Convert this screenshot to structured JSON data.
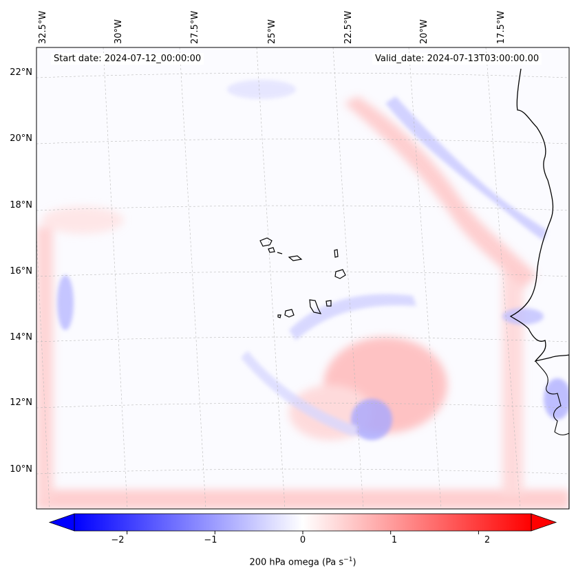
{
  "map": {
    "start_date": "Start date: 2024-07-12_00:00:00",
    "valid_date": "Valid_date: 2024-07-13T03:00:00.00",
    "lon_labels": [
      "32.5°W",
      "30°W",
      "27.5°W",
      "25°W",
      "22.5°W",
      "20°W",
      "17.5°W"
    ],
    "lat_labels": [
      "22°N",
      "20°N",
      "18°N",
      "16°N",
      "14°N",
      "12°N",
      "10°N"
    ]
  },
  "colorbar": {
    "min": -2.6,
    "max": 2.6,
    "ticks": [
      "−2",
      "−1",
      "0",
      "1",
      "2"
    ],
    "tick_values": [
      -2,
      -1,
      0,
      1,
      2
    ],
    "label_main": "200 hPa omega (Pa s",
    "label_sup": "−1",
    "label_end": ")",
    "colors": {
      "negative": "#0000ff",
      "zero": "#ffffff",
      "positive": "#ff0000",
      "coast": "#000000",
      "grid": "#b0b0b0"
    }
  }
}
